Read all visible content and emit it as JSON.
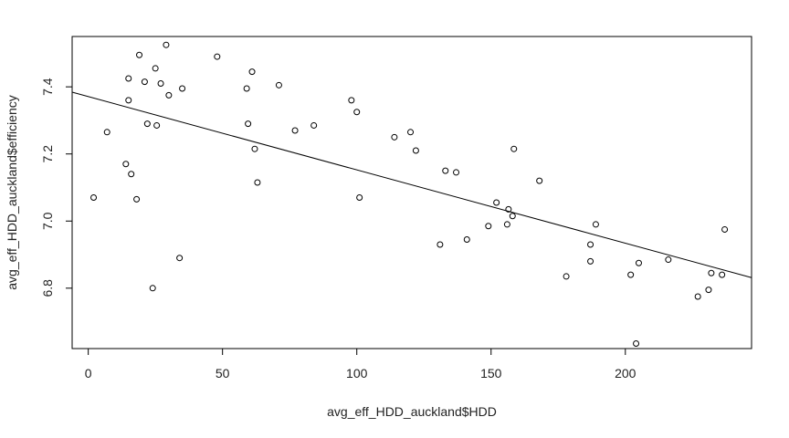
{
  "chart_data": {
    "type": "scatter",
    "title": "",
    "xlabel": "avg_eff_HDD_auckland$HDD",
    "ylabel": "avg_eff_HDD_auckland$efficiency",
    "xlim": [
      -6,
      247
    ],
    "ylim": [
      6.62,
      7.55
    ],
    "xticks": [
      0,
      50,
      100,
      150,
      200
    ],
    "yticks": [
      6.8,
      7.0,
      7.2,
      7.4
    ],
    "ytick_labels": [
      "6.8",
      "7.0",
      "7.2",
      "7.4"
    ],
    "grid": false,
    "legend": "none",
    "points": [
      {
        "x": 2,
        "y": 7.07
      },
      {
        "x": 7,
        "y": 7.265
      },
      {
        "x": 14,
        "y": 7.17
      },
      {
        "x": 15,
        "y": 7.425
      },
      {
        "x": 15,
        "y": 7.36
      },
      {
        "x": 16,
        "y": 7.14
      },
      {
        "x": 18,
        "y": 7.065
      },
      {
        "x": 19,
        "y": 7.495
      },
      {
        "x": 21,
        "y": 7.415
      },
      {
        "x": 22,
        "y": 7.29
      },
      {
        "x": 24,
        "y": 6.8
      },
      {
        "x": 25,
        "y": 7.455
      },
      {
        "x": 25.5,
        "y": 7.285
      },
      {
        "x": 27,
        "y": 7.41
      },
      {
        "x": 29,
        "y": 7.525
      },
      {
        "x": 30,
        "y": 7.375
      },
      {
        "x": 34,
        "y": 6.89
      },
      {
        "x": 35,
        "y": 7.395
      },
      {
        "x": 48,
        "y": 7.49
      },
      {
        "x": 59,
        "y": 7.395
      },
      {
        "x": 59.5,
        "y": 7.29
      },
      {
        "x": 61,
        "y": 7.445
      },
      {
        "x": 62,
        "y": 7.215
      },
      {
        "x": 63,
        "y": 7.115
      },
      {
        "x": 71,
        "y": 7.405
      },
      {
        "x": 77,
        "y": 7.27
      },
      {
        "x": 84,
        "y": 7.285
      },
      {
        "x": 98,
        "y": 7.36
      },
      {
        "x": 100,
        "y": 7.325
      },
      {
        "x": 101,
        "y": 7.07
      },
      {
        "x": 114,
        "y": 7.25
      },
      {
        "x": 120,
        "y": 7.265
      },
      {
        "x": 122,
        "y": 7.21
      },
      {
        "x": 131,
        "y": 6.93
      },
      {
        "x": 133,
        "y": 7.15
      },
      {
        "x": 137,
        "y": 7.145
      },
      {
        "x": 141,
        "y": 6.945
      },
      {
        "x": 149,
        "y": 6.985
      },
      {
        "x": 152,
        "y": 7.055
      },
      {
        "x": 156,
        "y": 6.99
      },
      {
        "x": 156.5,
        "y": 7.035
      },
      {
        "x": 158,
        "y": 7.015
      },
      {
        "x": 158.5,
        "y": 7.215
      },
      {
        "x": 168,
        "y": 7.12
      },
      {
        "x": 178,
        "y": 6.835
      },
      {
        "x": 187,
        "y": 6.93
      },
      {
        "x": 187,
        "y": 6.88
      },
      {
        "x": 189,
        "y": 6.99
      },
      {
        "x": 202,
        "y": 6.84
      },
      {
        "x": 204,
        "y": 6.635
      },
      {
        "x": 205,
        "y": 6.875
      },
      {
        "x": 216,
        "y": 6.885
      },
      {
        "x": 227,
        "y": 6.775
      },
      {
        "x": 231,
        "y": 6.795
      },
      {
        "x": 232,
        "y": 6.845
      },
      {
        "x": 236,
        "y": 6.84
      },
      {
        "x": 237,
        "y": 6.975
      }
    ],
    "regression_line": {
      "intercept": 7.371,
      "slope": -0.002185
    }
  }
}
